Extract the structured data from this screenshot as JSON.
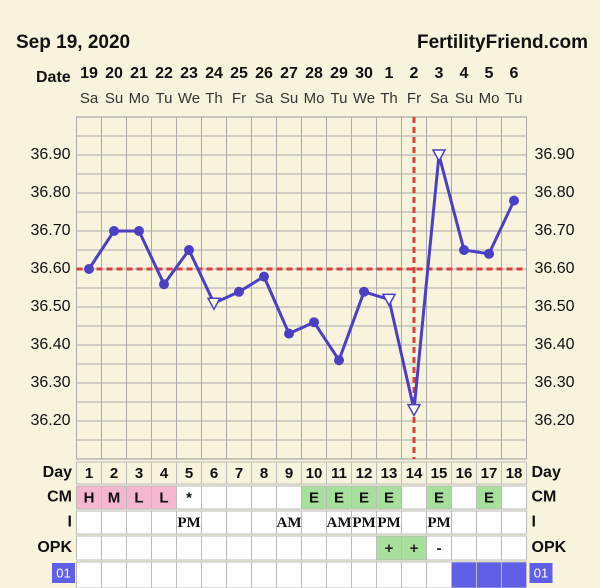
{
  "chart_data": {
    "type": "line",
    "title": "Sep 19, 2020",
    "brand": "FertilityFriend.com",
    "date_label": "Date",
    "categories": [
      "19",
      "20",
      "21",
      "22",
      "23",
      "24",
      "25",
      "26",
      "27",
      "28",
      "29",
      "30",
      "1",
      "2",
      "3",
      "4",
      "5",
      "6"
    ],
    "weekdays": [
      "Sa",
      "Su",
      "Mo",
      "Tu",
      "We",
      "Th",
      "Fr",
      "Sa",
      "Su",
      "Mo",
      "Tu",
      "We",
      "Th",
      "Fr",
      "Sa",
      "Su",
      "Mo",
      "Tu"
    ],
    "values": [
      36.6,
      36.7,
      36.7,
      36.56,
      36.65,
      36.51,
      36.54,
      36.58,
      36.43,
      36.46,
      36.36,
      36.54,
      36.52,
      36.23,
      36.9,
      36.65,
      36.64,
      36.78
    ],
    "markers": [
      "circle",
      "circle",
      "circle",
      "circle",
      "circle",
      "triangle",
      "circle",
      "circle",
      "circle",
      "circle",
      "circle",
      "circle",
      "triangle",
      "triangle",
      "triangle",
      "circle",
      "circle",
      "circle"
    ],
    "color": "#4b3fc4",
    "ylim": [
      36.1,
      37.0
    ],
    "yticks": [
      {
        "value": 36.2,
        "label": "36.20"
      },
      {
        "value": 36.3,
        "label": "36.30"
      },
      {
        "value": 36.4,
        "label": "36.40"
      },
      {
        "value": 36.5,
        "label": "36.50"
      },
      {
        "value": 36.6,
        "label": "36.60"
      },
      {
        "value": 36.7,
        "label": "36.70"
      },
      {
        "value": 36.8,
        "label": "36.80"
      },
      {
        "value": 36.9,
        "label": "36.90"
      }
    ],
    "grid": true,
    "coverline": 36.6,
    "ovulation_day": 14,
    "line_color": "#d94040",
    "table": {
      "row_labels": [
        "Day",
        "CM",
        "I",
        "OPK"
      ],
      "days": [
        1,
        2,
        3,
        4,
        5,
        6,
        7,
        8,
        9,
        10,
        11,
        12,
        13,
        14,
        15,
        16,
        17,
        18
      ],
      "cm": [
        "H",
        "M",
        "L",
        "L",
        "*",
        null,
        null,
        null,
        null,
        "E",
        "E",
        "E",
        "E",
        null,
        "E",
        null,
        "E",
        null
      ],
      "intercourse": [
        null,
        null,
        null,
        null,
        "PM",
        null,
        null,
        null,
        "AM",
        null,
        "AM",
        "PM",
        "PM",
        null,
        "PM",
        null,
        null,
        null
      ],
      "opk": [
        null,
        null,
        null,
        null,
        null,
        null,
        null,
        null,
        null,
        null,
        null,
        null,
        "+",
        "+",
        "-",
        null,
        null,
        null
      ],
      "cycle": "01",
      "highlight_days": [
        16,
        17,
        18
      ]
    }
  }
}
